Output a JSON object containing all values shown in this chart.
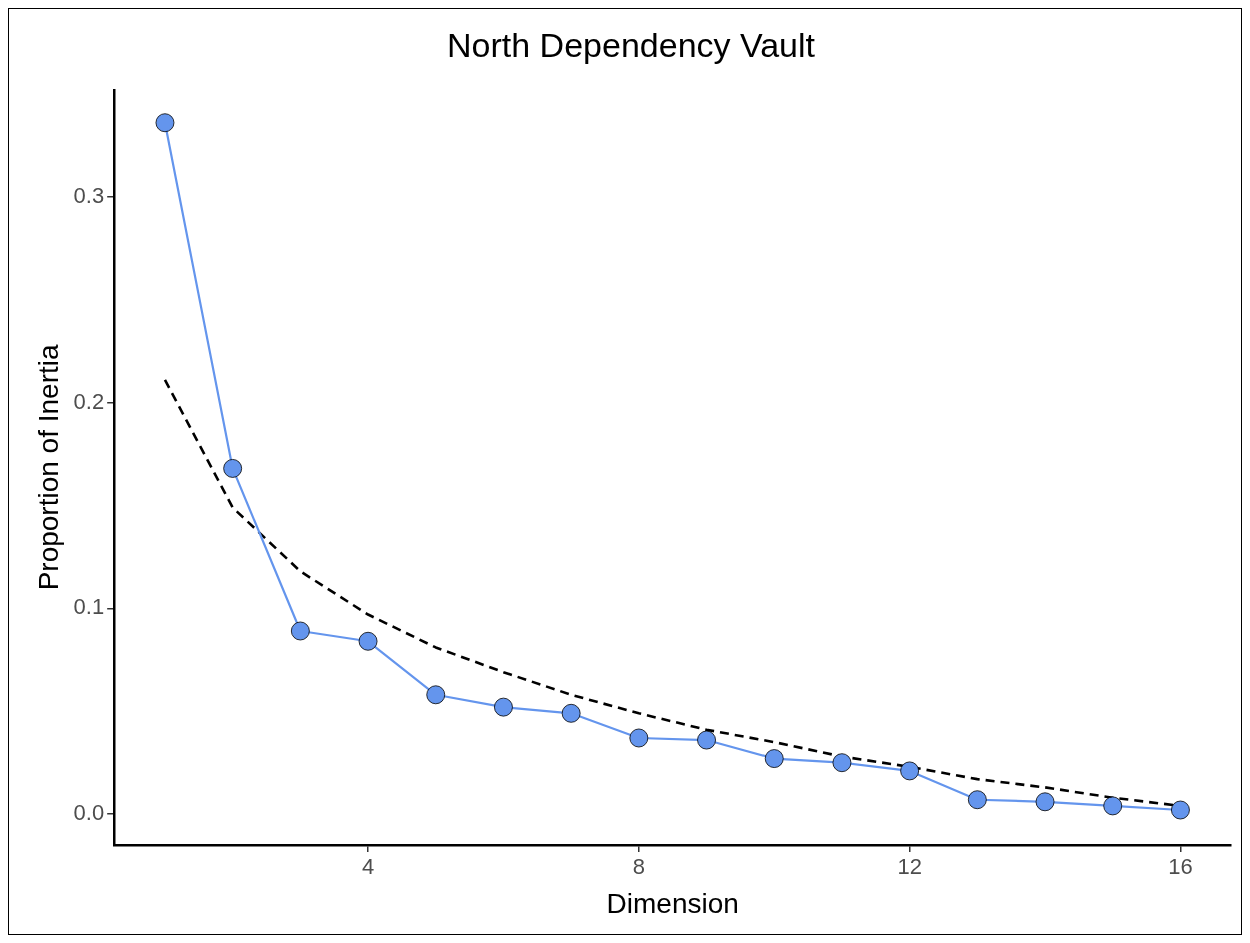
{
  "chart_data": {
    "type": "line",
    "title": "North Dependency Vault",
    "xlabel": "Dimension",
    "ylabel": "Proportion of Inertia",
    "x": [
      1,
      2,
      3,
      4,
      5,
      6,
      7,
      8,
      9,
      10,
      11,
      12,
      13,
      14,
      15,
      16
    ],
    "xlim": [
      0.25,
      16.75
    ],
    "xticks": [
      4,
      8,
      12,
      16
    ],
    "ylim": [
      -0.015,
      0.352
    ],
    "yticks": [
      {
        "value": 0,
        "label": "0.0"
      },
      {
        "value": 0.1,
        "label": "0.1"
      },
      {
        "value": 0.2,
        "label": "0.2"
      },
      {
        "value": 0.3,
        "label": "0.3"
      }
    ],
    "marker": "circle",
    "line_style": "solid",
    "series": [
      {
        "color": "#6495ed",
        "values": [
          0.336,
          0.168,
          0.089,
          0.084,
          0.058,
          0.052,
          0.049,
          0.037,
          0.036,
          0.027,
          0.025,
          0.021,
          0.007,
          0.006,
          0.004,
          0.002
        ]
      },
      {
        "type": "line",
        "color": "#000000",
        "line_style": "dashed",
        "marker": "none",
        "x": [
          1,
          2,
          3,
          4,
          5,
          6,
          7,
          8,
          9,
          10,
          11,
          12,
          13,
          14,
          15,
          16
        ],
        "values": [
          0.211,
          0.149,
          0.118,
          0.097,
          0.081,
          0.069,
          0.058,
          0.049,
          0.041,
          0.035,
          0.028,
          0.023,
          0.017,
          0.013,
          0.008,
          0.004
        ]
      }
    ]
  }
}
